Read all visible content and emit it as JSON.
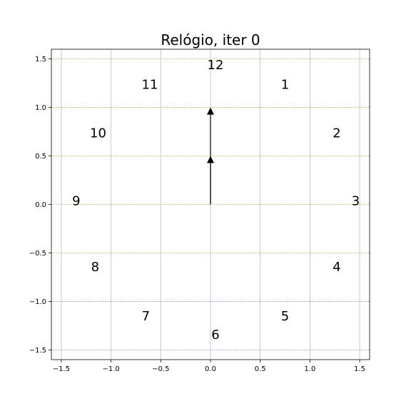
{
  "chart_data": {
    "type": "scatter",
    "title": "Relógio, iter 0",
    "xlabel": "",
    "ylabel": "",
    "xlim": [
      -1.6,
      1.6
    ],
    "ylim": [
      -1.6,
      1.6
    ],
    "x_ticks": [
      -1.5,
      -1.0,
      -0.5,
      0.0,
      0.5,
      1.0,
      1.5
    ],
    "y_ticks": [
      -1.5,
      -1.0,
      -0.5,
      0.0,
      0.5,
      1.0,
      1.5
    ],
    "x_tick_labels": [
      "−1.5",
      "−1.0",
      "−0.5",
      "0.0",
      "0.5",
      "1.0",
      "1.5"
    ],
    "y_tick_labels": [
      "−1.5",
      "−1.0",
      "−0.5",
      "0.0",
      "0.5",
      "1.0",
      "1.5"
    ],
    "grid": true,
    "hour_labels": [
      {
        "text": "12",
        "x": 0.05,
        "y": 1.43
      },
      {
        "text": "1",
        "x": 0.75,
        "y": 1.23
      },
      {
        "text": "2",
        "x": 1.27,
        "y": 0.73
      },
      {
        "text": "3",
        "x": 1.46,
        "y": 0.03
      },
      {
        "text": "4",
        "x": 1.27,
        "y": -0.65
      },
      {
        "text": "5",
        "x": 0.75,
        "y": -1.16
      },
      {
        "text": "6",
        "x": 0.05,
        "y": -1.35
      },
      {
        "text": "7",
        "x": -0.65,
        "y": -1.16
      },
      {
        "text": "8",
        "x": -1.16,
        "y": -0.65
      },
      {
        "text": "9",
        "x": -1.35,
        "y": 0.03
      },
      {
        "text": "10",
        "x": -1.13,
        "y": 0.73
      },
      {
        "text": "11",
        "x": -0.61,
        "y": 1.23
      }
    ],
    "hands": [
      {
        "name": "hour-hand",
        "x": 0.0,
        "y": 0.5
      },
      {
        "name": "minute-hand",
        "x": 0.0,
        "y": 1.0
      }
    ]
  }
}
